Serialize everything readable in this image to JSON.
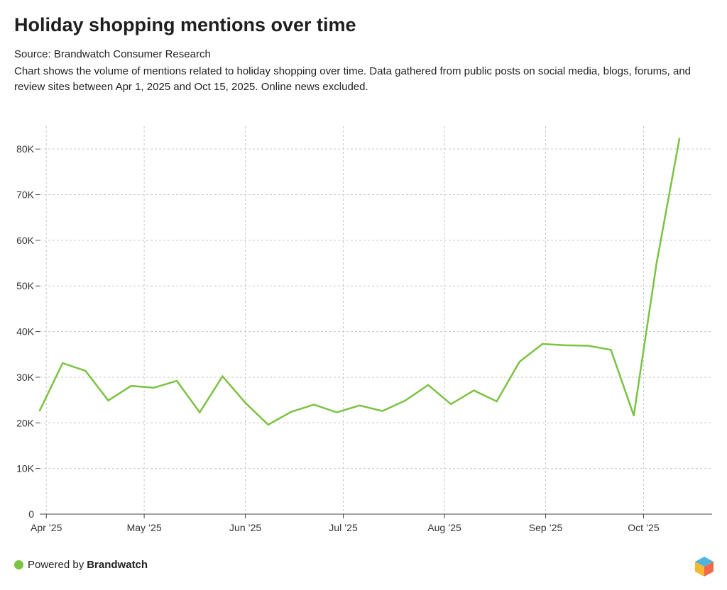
{
  "title": "Holiday shopping mentions over time",
  "source": "Source: Brandwatch Consumer Research",
  "description": "Chart shows the volume of mentions related to holiday shopping over time. Data gathered from public posts on social media, blogs, forums, and review sites between Apr 1, 2025 and Oct 15, 2025. Online news excluded.",
  "footer": {
    "powered_by": "Powered by",
    "brand": "Brandwatch",
    "dot_color": "#7cc243"
  },
  "logo_icon": "brandwatch-hexagon-logo",
  "colors": {
    "line": "#7cc243",
    "grid": "#c8c8c8",
    "axis": "#444444"
  },
  "chart_data": {
    "type": "line",
    "title": "Holiday shopping mentions over time",
    "x_type": "date",
    "x_range": [
      "2025-03-30",
      "2025-10-22"
    ],
    "ylim": [
      0,
      85000
    ],
    "y_ticks": [
      0,
      10000,
      20000,
      30000,
      40000,
      50000,
      60000,
      70000,
      80000
    ],
    "y_tick_labels": [
      "0",
      "10K",
      "20K",
      "30K",
      "40K",
      "50K",
      "60K",
      "70K",
      "80K"
    ],
    "x_ticks": [
      "2025-04-01",
      "2025-05-01",
      "2025-06-01",
      "2025-07-01",
      "2025-08-01",
      "2025-09-01",
      "2025-10-01"
    ],
    "x_tick_labels": [
      "Apr ’25",
      "May ’25",
      "Jun ’25",
      "Jul ’25",
      "Aug ’25",
      "Sep ’25",
      "Oct ’25"
    ],
    "grid": true,
    "legend": "none",
    "series": [
      {
        "x": [
          "2025-03-30",
          "2025-04-06",
          "2025-04-13",
          "2025-04-20",
          "2025-04-27",
          "2025-05-04",
          "2025-05-11",
          "2025-05-18",
          "2025-05-25",
          "2025-06-01",
          "2025-06-08",
          "2025-06-15",
          "2025-06-22",
          "2025-06-29",
          "2025-07-06",
          "2025-07-13",
          "2025-07-20",
          "2025-07-27",
          "2025-08-03",
          "2025-08-10",
          "2025-08-17",
          "2025-08-24",
          "2025-08-31",
          "2025-09-07",
          "2025-09-14",
          "2025-09-21",
          "2025-09-28",
          "2025-10-05",
          "2025-10-12"
        ],
        "values": [
          22700,
          33100,
          31400,
          24900,
          28100,
          27700,
          29200,
          22300,
          30200,
          24400,
          19600,
          22400,
          24000,
          22300,
          23800,
          22600,
          24900,
          28300,
          24100,
          27100,
          24700,
          33400,
          37300,
          37000,
          36900,
          36000,
          21600,
          55000,
          82300
        ]
      }
    ]
  }
}
